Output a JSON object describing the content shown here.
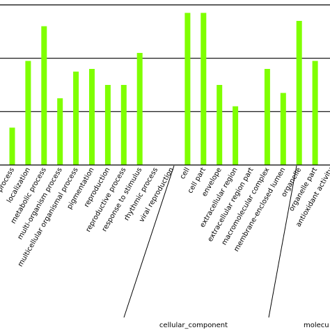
{
  "chart_data": {
    "type": "bar",
    "title": "",
    "xlabel": "",
    "ylabel": "",
    "grid": true,
    "ylim": [
      0,
      3
    ],
    "gridlines": [
      1,
      2,
      3
    ],
    "bar_color": "#7fff00",
    "categories": [
      "biological_process:cellular component organization or biogenesis",
      "localization",
      "metabolic process",
      "multi-organism process",
      "multicellular organismal process",
      "pigmentation",
      "reproduction",
      "reproductive process",
      "response to stimulus",
      "rhythmic process",
      "viral reproduction",
      "cell",
      "cell part",
      "envelope",
      "extracellular region",
      "extracellular region part",
      "macromolecular complex",
      "membrane-enclosed lumen",
      "organelle",
      "organelle part",
      "antioxidant activity"
    ],
    "tick_labels": [
      "n process",
      "localization",
      "metabolic process",
      "multi-organism process",
      "multicellular organismal process",
      "pigmentation",
      "reproduction",
      "reproductive process",
      "response to stimulus",
      "rhythmic process",
      "viral reproduction",
      "cell",
      "cell part",
      "envelope",
      "extracellular region",
      "extracellular region part",
      "macromolecular complex",
      "membrane-enclosed lumen",
      "organelle",
      "organelle part",
      "antioxidant activity"
    ],
    "values": [
      0.7,
      1.95,
      2.6,
      1.25,
      1.75,
      1.8,
      1.5,
      1.5,
      2.1,
      0,
      0,
      2.85,
      2.85,
      1.5,
      1.1,
      0,
      1.8,
      1.35,
      2.7,
      1.95,
      0
    ],
    "groups": [
      {
        "label": "",
        "start": 0,
        "end": 10
      },
      {
        "label": "cellular_component",
        "start": 11,
        "end": 18
      },
      {
        "label": "molecu",
        "start": 19,
        "end": 20
      }
    ]
  }
}
